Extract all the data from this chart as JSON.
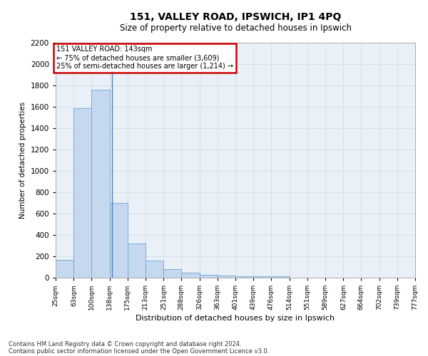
{
  "title": "151, VALLEY ROAD, IPSWICH, IP1 4PQ",
  "subtitle": "Size of property relative to detached houses in Ipswich",
  "xlabel": "Distribution of detached houses by size in Ipswich",
  "ylabel": "Number of detached properties",
  "footnote1": "Contains HM Land Registry data © Crown copyright and database right 2024.",
  "footnote2": "Contains public sector information licensed under the Open Government Licence v3.0.",
  "annotation_title": "151 VALLEY ROAD: 143sqm",
  "annotation_line2": "← 75% of detached houses are smaller (3,609)",
  "annotation_line3": "25% of semi-detached houses are larger (1,214) →",
  "property_size": 143,
  "bin_edges": [
    25,
    63,
    100,
    138,
    175,
    213,
    251,
    288,
    326,
    363,
    401,
    439,
    476,
    514,
    551,
    589,
    627,
    664,
    702,
    739,
    777
  ],
  "bin_labels": [
    "25sqm",
    "63sqm",
    "100sqm",
    "138sqm",
    "175sqm",
    "213sqm",
    "251sqm",
    "288sqm",
    "326sqm",
    "363sqm",
    "401sqm",
    "439sqm",
    "476sqm",
    "514sqm",
    "551sqm",
    "589sqm",
    "627sqm",
    "664sqm",
    "702sqm",
    "739sqm",
    "777sqm"
  ],
  "bar_values": [
    170,
    1590,
    1760,
    700,
    320,
    160,
    80,
    45,
    25,
    20,
    15,
    15,
    15,
    0,
    0,
    0,
    0,
    0,
    0,
    0
  ],
  "bar_color": "#c5d8ef",
  "bar_edge_color": "#7aaed4",
  "grid_color": "#d0dcea",
  "background_color": "#eaf0f8",
  "property_line_color": "#4f7fbf",
  "annotation_box_edgecolor": "#cc0000",
  "annotation_box_facecolor": "#ffffff",
  "ylim": [
    0,
    2200
  ],
  "yticks": [
    0,
    200,
    400,
    600,
    800,
    1000,
    1200,
    1400,
    1600,
    1800,
    2000,
    2200
  ],
  "title_fontsize": 10,
  "subtitle_fontsize": 8.5,
  "xlabel_fontsize": 8,
  "ylabel_fontsize": 7.5,
  "ytick_fontsize": 7.5,
  "xtick_fontsize": 6.5,
  "annotation_fontsize": 7,
  "footnote_fontsize": 6
}
